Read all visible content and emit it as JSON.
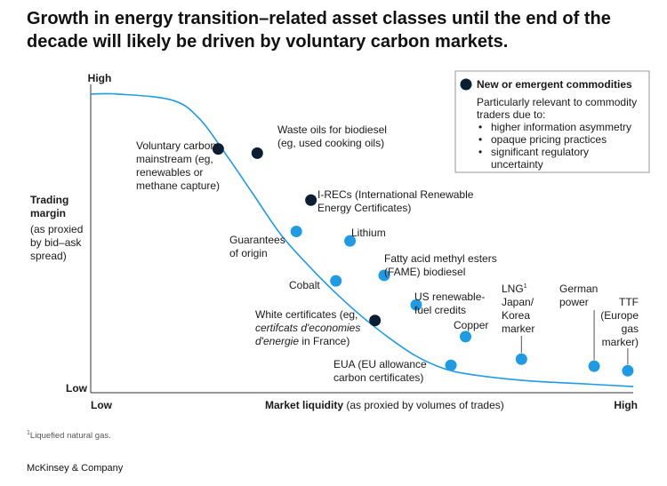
{
  "title_line1": "Growth in energy transition–related asset classes until the end of the",
  "title_line2": "decade will likely be driven by voluntary carbon markets.",
  "footnote_marker": "1",
  "footnote_text": "Liquefied natural gas.",
  "source": "McKinsey & Company",
  "colors": {
    "new_commodity": "#0b1e33",
    "established_commodity": "#1f9be6",
    "curve": "#1f9be6",
    "axis": "#333333"
  },
  "chart_data": {
    "type": "scatter",
    "y_axis": {
      "title": "Trading",
      "title_line2": "margin",
      "subtitle_lines": [
        "(as proxied",
        "by bid–ask",
        "spread)"
      ],
      "high_label": "High",
      "low_label": "Low"
    },
    "x_axis": {
      "title": "Market liquidity",
      "subtitle": "(as proxied by volumes of trades)",
      "low_label": "Low",
      "high_label": "High"
    },
    "legend": {
      "title": "New or emergent commodities",
      "intro_lines": [
        "Particularly relevant to commodity",
        "traders due to:"
      ],
      "bullets": [
        [
          "higher information asymmetry"
        ],
        [
          "opaque pricing practices"
        ],
        [
          "significant regulatory",
          "uncertainty"
        ]
      ],
      "placement": "top-right"
    },
    "xlim": [
      0,
      1
    ],
    "ylim": [
      0,
      1
    ],
    "curve": [
      [
        0,
        0.98
      ],
      [
        0.05,
        0.98
      ],
      [
        0.15,
        0.96
      ],
      [
        0.2,
        0.9
      ],
      [
        0.25,
        0.78
      ],
      [
        0.3,
        0.65
      ],
      [
        0.35,
        0.52
      ],
      [
        0.4,
        0.42
      ],
      [
        0.45,
        0.33
      ],
      [
        0.5,
        0.25
      ],
      [
        0.55,
        0.18
      ],
      [
        0.6,
        0.12
      ],
      [
        0.65,
        0.08
      ],
      [
        0.7,
        0.06
      ],
      [
        0.8,
        0.04
      ],
      [
        0.9,
        0.03
      ],
      [
        1.0,
        0.02
      ]
    ],
    "points": [
      {
        "label_lines": [
          "Voluntary carbon",
          "mainstream (eg,",
          "renewables or",
          "methane capture)"
        ],
        "group": "new",
        "x": 0.235,
        "y": 0.8
      },
      {
        "label_lines": [
          "Waste oils for biodiesel",
          "(eg, used cooking oils)"
        ],
        "group": "new",
        "x": 0.307,
        "y": 0.786
      },
      {
        "label_lines": [
          "I-RECs (International Renewable",
          "Energy Certificates)"
        ],
        "group": "new",
        "x": 0.406,
        "y": 0.632
      },
      {
        "label_lines": [
          "Guarantees",
          "of origin"
        ],
        "group": "established",
        "x": 0.379,
        "y": 0.529
      },
      {
        "label_lines": [
          "Lithium"
        ],
        "group": "established",
        "x": 0.478,
        "y": 0.498
      },
      {
        "label_lines": [
          "Fatty acid methyl esters",
          "(FAME) biodiesel"
        ],
        "group": "established",
        "x": 0.541,
        "y": 0.385
      },
      {
        "label_lines": [
          "Cobalt"
        ],
        "group": "established",
        "x": 0.452,
        "y": 0.367
      },
      {
        "label_lines": [
          "US renewable-",
          "fuel credits"
        ],
        "group": "established",
        "x": 0.6,
        "y": 0.288
      },
      {
        "label_lines": [
          "White certificates (eg,",
          "certifcats d'economies",
          "d'energie in France)"
        ],
        "italic_runs": [
          "certifcats d'economies",
          "d'energie"
        ],
        "group": "new",
        "x": 0.524,
        "y": 0.237
      },
      {
        "label_lines": [
          "Copper"
        ],
        "group": "established",
        "x": 0.691,
        "y": 0.184
      },
      {
        "label_lines": [
          "EUA (EU allowance",
          "carbon certificates)"
        ],
        "group": "established",
        "x": 0.664,
        "y": 0.09
      },
      {
        "label_lines": [
          "LNG",
          "Japan/",
          "Korea",
          "marker"
        ],
        "label_superscript": "1",
        "group": "established",
        "x": 0.794,
        "y": 0.11
      },
      {
        "label_lines": [
          "German",
          "power"
        ],
        "group": "established",
        "x": 0.928,
        "y": 0.087
      },
      {
        "label_lines": [
          "TTF",
          "(Europe",
          "gas",
          "marker)"
        ],
        "group": "established",
        "x": 0.99,
        "y": 0.072
      }
    ]
  }
}
